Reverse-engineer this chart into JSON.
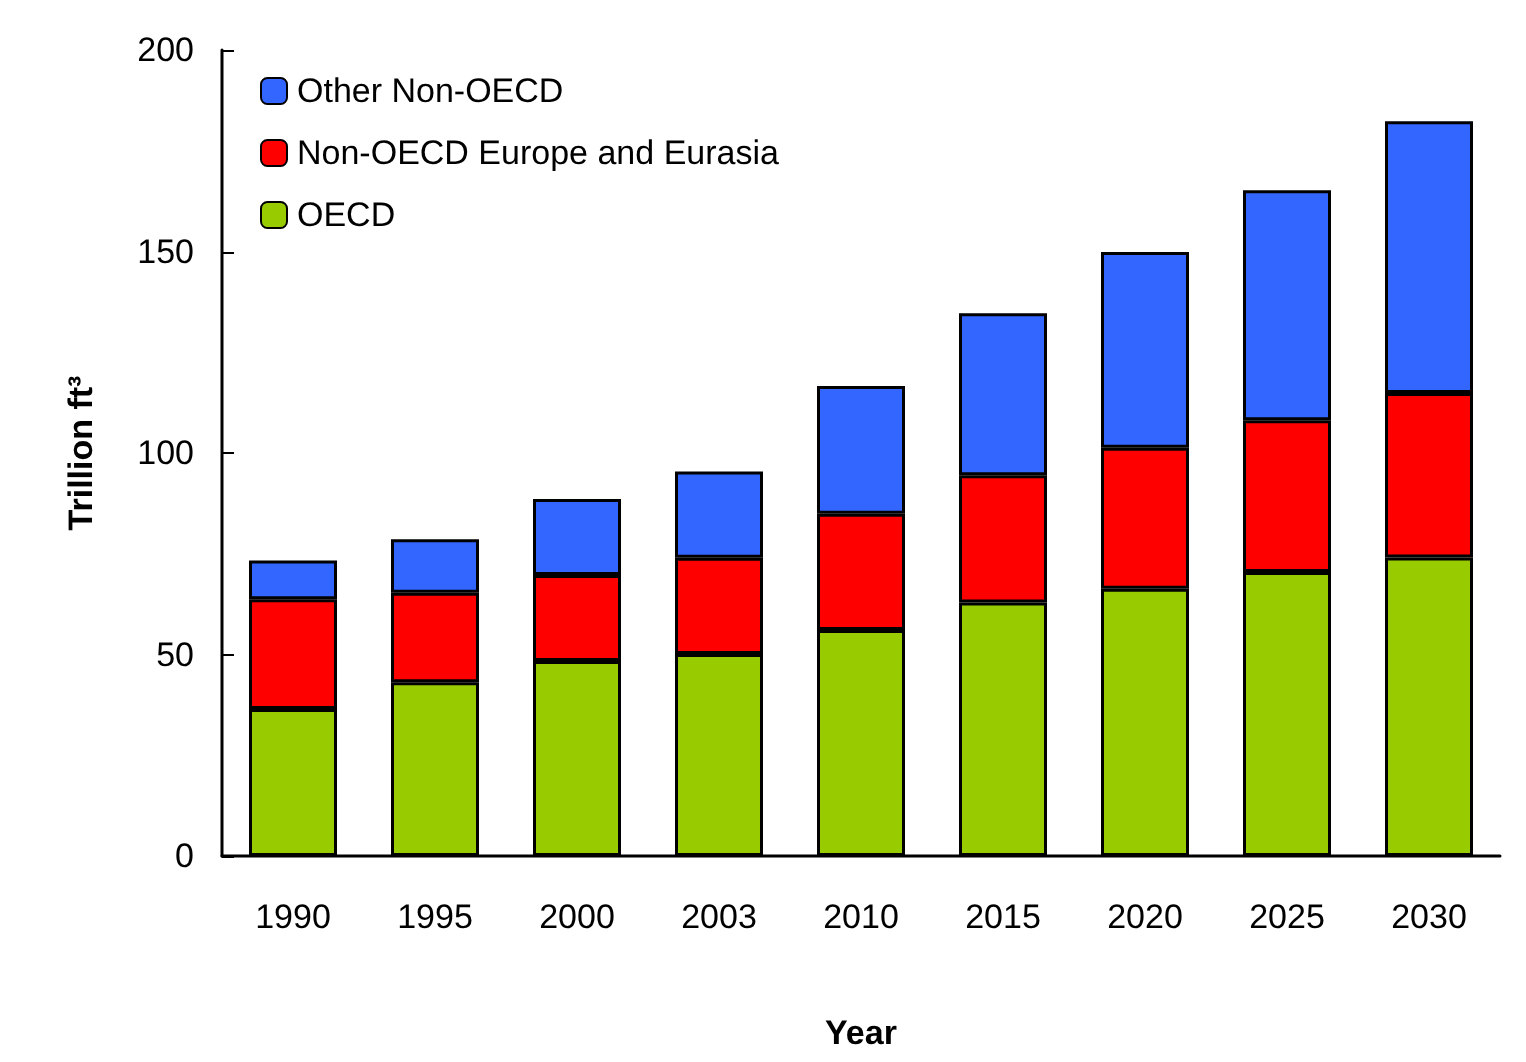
{
  "chart_data": {
    "type": "bar",
    "stacked": true,
    "xlabel": "Year",
    "ylabel": "Trillion ft³",
    "categories": [
      "1990",
      "1995",
      "2000",
      "2003",
      "2010",
      "2015",
      "2020",
      "2025",
      "2030"
    ],
    "series": [
      {
        "name": "OECD",
        "color": "#99cc00",
        "values": [
          36.5,
          43.1,
          48.4,
          50.1,
          56.1,
          62.9,
          66.3,
          70.5,
          74.1
        ]
      },
      {
        "name": "Non-OECD Europe and Eurasia",
        "color": "#ff0000",
        "values": [
          27.2,
          22.2,
          21.3,
          23.9,
          28.8,
          31.6,
          35.0,
          37.6,
          40.8
        ]
      },
      {
        "name": "Other Non-OECD",
        "color": "#3366ff",
        "values": [
          9.6,
          13.3,
          18.9,
          21.4,
          31.7,
          40.2,
          48.6,
          57.1,
          67.4
        ]
      }
    ],
    "ylim": [
      0,
      200
    ],
    "yticks": [
      0,
      50,
      100,
      150,
      200
    ],
    "grid": false,
    "legend": "top left"
  }
}
